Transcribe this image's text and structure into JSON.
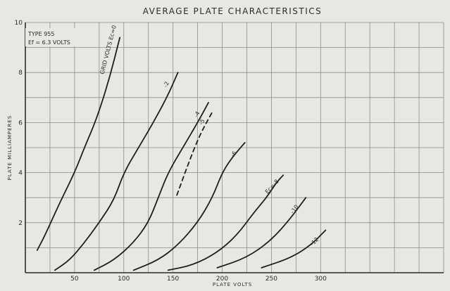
{
  "chart_data": {
    "type": "line",
    "title": "AVERAGE PLATE CHARACTERISTICS",
    "annotation_lines": [
      "TYPE 955",
      "Ef = 6.3 VOLTS"
    ],
    "xlabel": "PLATE VOLTS",
    "ylabel": "PLATE MILLIAMPERES",
    "xlim": [
      0,
      425
    ],
    "ylim": [
      0,
      10
    ],
    "xticks": [
      50,
      100,
      150,
      200,
      250,
      300
    ],
    "xtick_labels": [
      "50",
      "100",
      "150",
      "200",
      "250",
      "300"
    ],
    "yticks": [
      2,
      4,
      6,
      8,
      10
    ],
    "ytick_labels": [
      "2",
      "4",
      "6",
      "8",
      "10"
    ],
    "grid": true,
    "series": [
      {
        "name": "GRID VOLTS Ec=0",
        "label": "GRID VOLTS Ec=0",
        "dashed": false,
        "x": [
          12,
          20,
          35,
          50,
          60,
          72,
          85,
          96
        ],
        "y": [
          0.9,
          1.5,
          2.8,
          4.0,
          5.0,
          6.1,
          7.7,
          9.4
        ]
      },
      {
        "name": "-2",
        "label": "-2",
        "dashed": false,
        "x": [
          30,
          45,
          60,
          75,
          90,
          100,
          115,
          130,
          145,
          155
        ],
        "y": [
          0.1,
          0.5,
          1.2,
          2.0,
          2.9,
          4.0,
          5.0,
          6.0,
          7.1,
          8.0
        ]
      },
      {
        "name": "-4",
        "label": "-4",
        "dashed": false,
        "x": [
          70,
          90,
          110,
          125,
          135,
          145,
          160,
          175,
          186
        ],
        "y": [
          0.1,
          0.5,
          1.2,
          2.0,
          3.0,
          4.0,
          5.0,
          6.0,
          6.8
        ]
      },
      {
        "name": "-5",
        "label": "-5",
        "dashed": true,
        "x": [
          154,
          165,
          177,
          191
        ],
        "y": [
          3.1,
          4.3,
          5.5,
          6.5
        ]
      },
      {
        "name": "-6",
        "label": "-6",
        "dashed": false,
        "x": [
          110,
          135,
          155,
          175,
          190,
          200,
          210,
          223
        ],
        "y": [
          0.1,
          0.5,
          1.1,
          2.0,
          3.0,
          4.0,
          4.6,
          5.2
        ]
      },
      {
        "name": "Ec=-8",
        "label": "Ec=-8",
        "dashed": false,
        "x": [
          145,
          170,
          195,
          215,
          232,
          245,
          255,
          262
        ],
        "y": [
          0.1,
          0.3,
          0.8,
          1.5,
          2.4,
          3.0,
          3.6,
          3.9
        ]
      },
      {
        "name": "-10",
        "label": "-10",
        "dashed": false,
        "x": [
          195,
          225,
          250,
          270,
          285
        ],
        "y": [
          0.2,
          0.6,
          1.3,
          2.2,
          3.0
        ]
      },
      {
        "name": "-12",
        "label": "-12",
        "dashed": false,
        "x": [
          240,
          270,
          290,
          305
        ],
        "y": [
          0.2,
          0.6,
          1.1,
          1.7
        ]
      }
    ]
  }
}
